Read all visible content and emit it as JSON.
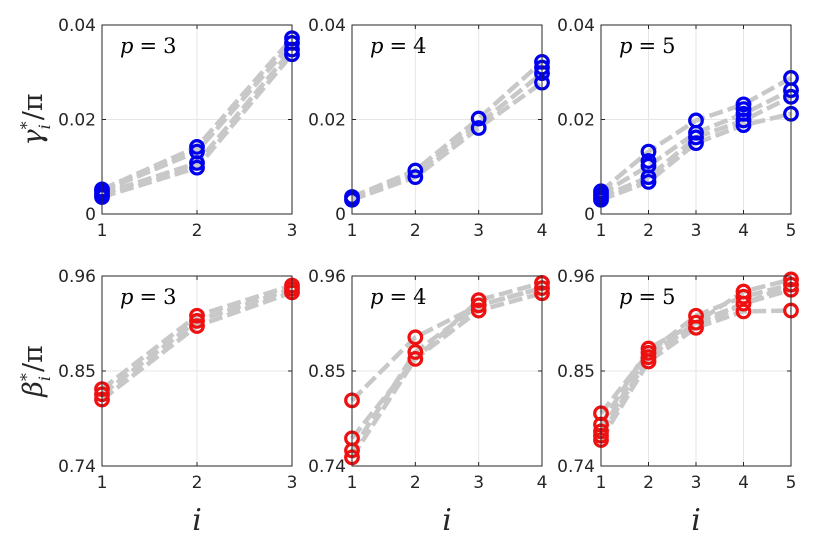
{
  "figure": {
    "rows": [
      {
        "ylabel": {
          "sym": "γ",
          "sup": "*",
          "sub": "i",
          "rest": "/π"
        },
        "yticks": [
          "0",
          "0.02",
          "0.04"
        ],
        "ylim": [
          0,
          0.04
        ]
      },
      {
        "ylabel": {
          "sym": "β",
          "sup": "*",
          "sub": "i",
          "rest": "/π"
        },
        "yticks": [
          "0.74",
          "0.85",
          "0.96"
        ],
        "ylim": [
          0.74,
          0.96
        ]
      }
    ],
    "xlabel": "i"
  },
  "chart_data": [
    {
      "type": "scatter",
      "panel": "gamma-p3",
      "annotation": {
        "var": "p",
        "op": "=",
        "val": "3"
      },
      "xlim": [
        1,
        3
      ],
      "xticks": [
        "1",
        "2",
        "3"
      ],
      "ylim": [
        0,
        0.04
      ],
      "color": "#0000ee",
      "grid": true,
      "markers": [
        {
          "x": 1,
          "y": [
            0.0036,
            0.0042,
            0.0048,
            0.0052
          ]
        },
        {
          "x": 2,
          "y": [
            0.0098,
            0.0108,
            0.0132,
            0.0142
          ]
        },
        {
          "x": 3,
          "y": [
            0.0338,
            0.0348,
            0.0362,
            0.0372
          ]
        }
      ],
      "guide_lines": [
        [
          0.0036,
          0.0098,
          0.0338
        ],
        [
          0.0042,
          0.0108,
          0.0348
        ],
        [
          0.0048,
          0.0132,
          0.0362
        ],
        [
          0.0052,
          0.0142,
          0.0372
        ]
      ]
    },
    {
      "type": "scatter",
      "panel": "gamma-p4",
      "annotation": {
        "var": "p",
        "op": "=",
        "val": "4"
      },
      "xlim": [
        1,
        4
      ],
      "xticks": [
        "1",
        "2",
        "3",
        "4"
      ],
      "ylim": [
        0,
        0.04
      ],
      "color": "#0000ee",
      "grid": true,
      "markers": [
        {
          "x": 1,
          "y": [
            0.003,
            0.0036
          ]
        },
        {
          "x": 2,
          "y": [
            0.0078,
            0.0092
          ]
        },
        {
          "x": 3,
          "y": [
            0.0182,
            0.0202
          ]
        },
        {
          "x": 4,
          "y": [
            0.0278,
            0.0298,
            0.031,
            0.0322
          ]
        }
      ],
      "guide_lines": [
        [
          0.003,
          0.0078,
          0.0182,
          0.0278
        ],
        [
          0.0033,
          0.0085,
          0.019,
          0.0298
        ],
        [
          0.0036,
          0.0092,
          0.0202,
          0.0322
        ]
      ]
    },
    {
      "type": "scatter",
      "panel": "gamma-p5",
      "annotation": {
        "var": "p",
        "op": "=",
        "val": "5"
      },
      "xlim": [
        1,
        5
      ],
      "xticks": [
        "1",
        "2",
        "3",
        "4",
        "5"
      ],
      "ylim": [
        0,
        0.04
      ],
      "color": "#0000ee",
      "grid": true,
      "markers": [
        {
          "x": 1,
          "y": [
            0.003,
            0.0036,
            0.0042,
            0.0048
          ]
        },
        {
          "x": 2,
          "y": [
            0.0068,
            0.0078,
            0.0102,
            0.0112,
            0.0132
          ]
        },
        {
          "x": 3,
          "y": [
            0.015,
            0.0162,
            0.0172,
            0.0198
          ]
        },
        {
          "x": 4,
          "y": [
            0.0188,
            0.0198,
            0.0212,
            0.0222,
            0.0232
          ]
        },
        {
          "x": 5,
          "y": [
            0.0212,
            0.0248,
            0.0262,
            0.0288
          ]
        }
      ],
      "guide_lines": [
        [
          0.003,
          0.0068,
          0.015,
          0.0188,
          0.0212
        ],
        [
          0.0036,
          0.0078,
          0.0162,
          0.0198,
          0.0248
        ],
        [
          0.0042,
          0.0102,
          0.0172,
          0.0212,
          0.0262
        ],
        [
          0.0048,
          0.0132,
          0.0198,
          0.0232,
          0.0288
        ]
      ]
    },
    {
      "type": "scatter",
      "panel": "beta-p3",
      "annotation": {
        "var": "p",
        "op": "=",
        "val": "3"
      },
      "xlim": [
        1,
        3
      ],
      "xticks": [
        "1",
        "2",
        "3"
      ],
      "ylim": [
        0.74,
        0.96
      ],
      "color": "#ee1111",
      "grid": true,
      "markers": [
        {
          "x": 1,
          "y": [
            0.817,
            0.823,
            0.829
          ]
        },
        {
          "x": 2,
          "y": [
            0.902,
            0.908,
            0.914
          ]
        },
        {
          "x": 3,
          "y": [
            0.941,
            0.945,
            0.949
          ]
        }
      ],
      "guide_lines": [
        [
          0.817,
          0.902,
          0.941
        ],
        [
          0.823,
          0.908,
          0.945
        ],
        [
          0.829,
          0.914,
          0.949
        ]
      ]
    },
    {
      "type": "scatter",
      "panel": "beta-p4",
      "annotation": {
        "var": "p",
        "op": "=",
        "val": "4"
      },
      "xlim": [
        1,
        4
      ],
      "xticks": [
        "1",
        "2",
        "3",
        "4"
      ],
      "ylim": [
        0.74,
        0.96
      ],
      "color": "#ee1111",
      "grid": true,
      "markers": [
        {
          "x": 1,
          "y": [
            0.75,
            0.758,
            0.772,
            0.816
          ]
        },
        {
          "x": 2,
          "y": [
            0.864,
            0.872,
            0.889
          ]
        },
        {
          "x": 3,
          "y": [
            0.92,
            0.926,
            0.932
          ]
        },
        {
          "x": 4,
          "y": [
            0.94,
            0.946,
            0.952
          ]
        }
      ],
      "guide_lines": [
        [
          0.75,
          0.864,
          0.92,
          0.94
        ],
        [
          0.758,
          0.872,
          0.926,
          0.946
        ],
        [
          0.772,
          0.864,
          0.932,
          0.952
        ],
        [
          0.816,
          0.889,
          0.926,
          0.946
        ]
      ]
    },
    {
      "type": "scatter",
      "panel": "beta-p5",
      "annotation": {
        "var": "p",
        "op": "=",
        "val": "5"
      },
      "xlim": [
        1,
        5
      ],
      "xticks": [
        "1",
        "2",
        "3",
        "4",
        "5"
      ],
      "ylim": [
        0.74,
        0.96
      ],
      "color": "#ee1111",
      "grid": true,
      "markers": [
        {
          "x": 1,
          "y": [
            0.77,
            0.775,
            0.78,
            0.788,
            0.801
          ]
        },
        {
          "x": 2,
          "y": [
            0.861,
            0.866,
            0.871,
            0.876
          ]
        },
        {
          "x": 3,
          "y": [
            0.9,
            0.906,
            0.914
          ]
        },
        {
          "x": 4,
          "y": [
            0.919,
            0.928,
            0.936,
            0.942
          ]
        },
        {
          "x": 5,
          "y": [
            0.92,
            0.944,
            0.95,
            0.956
          ]
        }
      ],
      "guide_lines": [
        [
          0.77,
          0.861,
          0.9,
          0.919,
          0.92
        ],
        [
          0.775,
          0.866,
          0.906,
          0.928,
          0.944
        ],
        [
          0.78,
          0.871,
          0.914,
          0.936,
          0.95
        ],
        [
          0.788,
          0.876,
          0.906,
          0.942,
          0.956
        ],
        [
          0.801,
          0.871,
          0.9,
          0.928,
          0.95
        ]
      ]
    }
  ]
}
